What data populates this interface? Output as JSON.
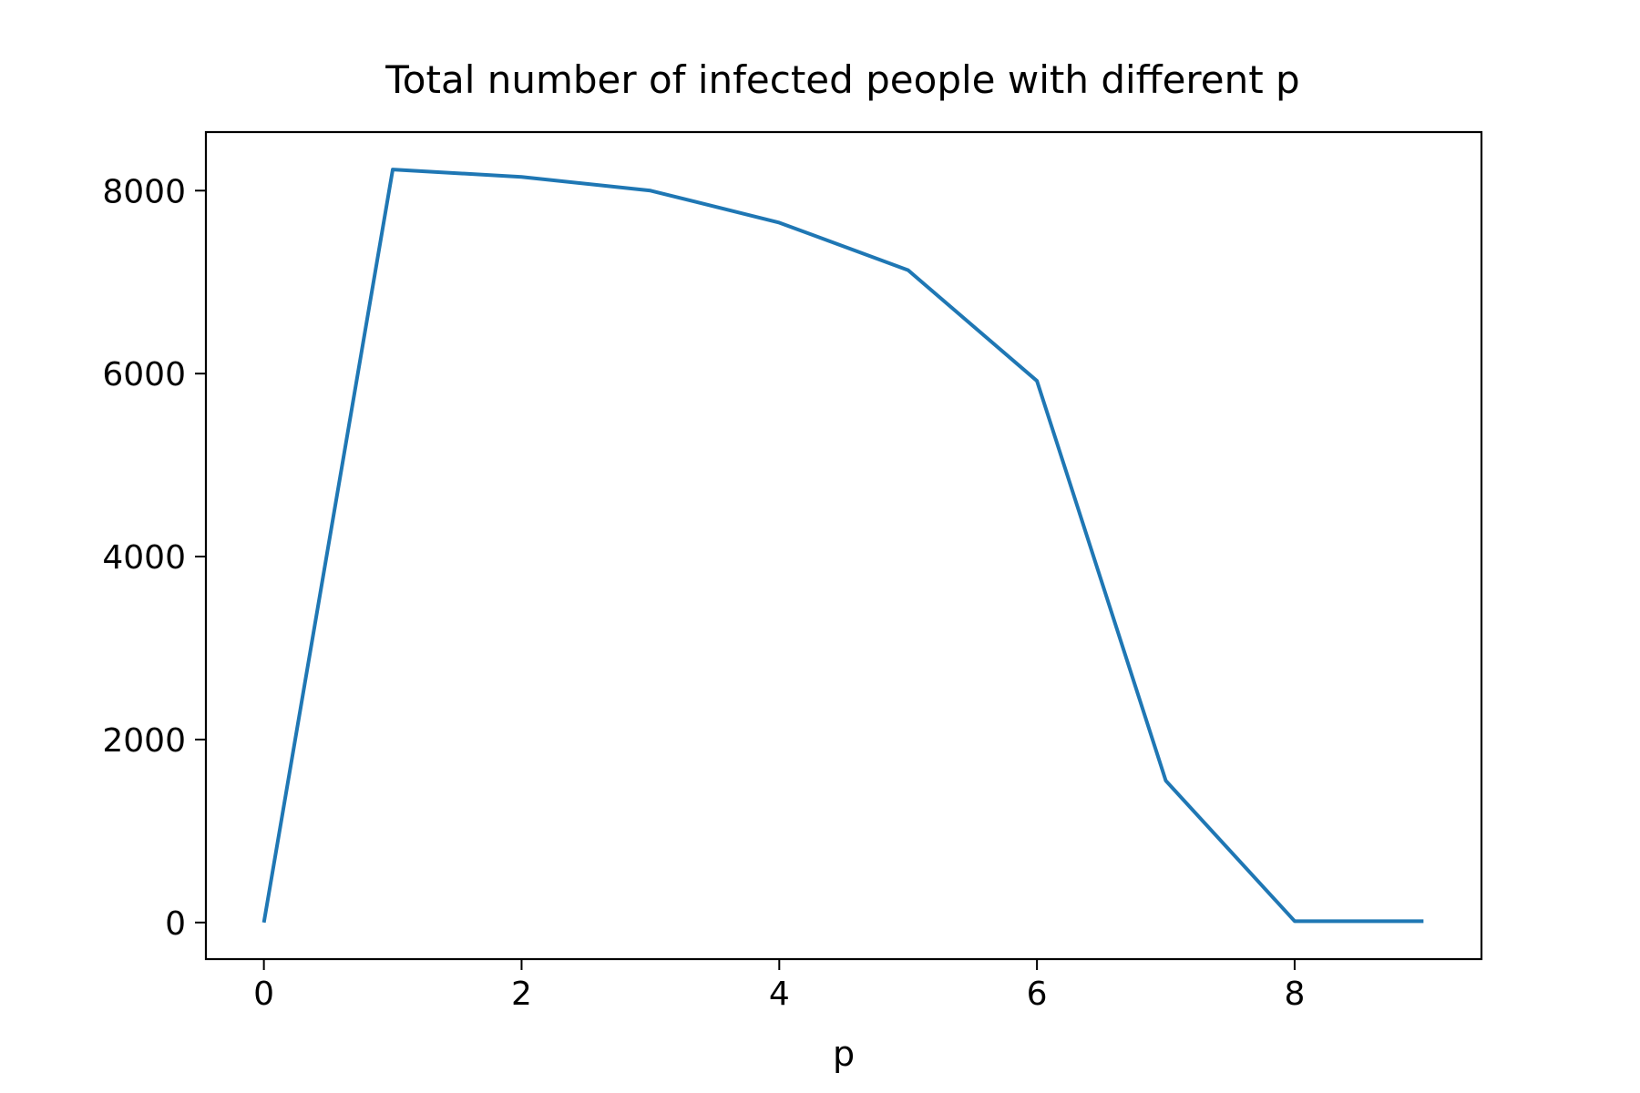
{
  "chart_data": {
    "type": "line",
    "title": "Total number of infected people with different p",
    "xlabel": "p",
    "ylabel": "",
    "x": [
      0,
      1,
      2,
      3,
      4,
      5,
      6,
      7,
      8,
      9
    ],
    "series": [
      {
        "values": [
          0,
          8230,
          8150,
          8000,
          7650,
          7130,
          5920,
          1550,
          15,
          15
        ],
        "color": "#1f77b4"
      }
    ],
    "xlim": [
      -0.45,
      9.45
    ],
    "ylim": [
      -400,
      8640
    ],
    "xticks": [
      0,
      2,
      4,
      6,
      8
    ],
    "xtick_labels": [
      "0",
      "2",
      "4",
      "6",
      "8"
    ],
    "yticks": [
      0,
      2000,
      4000,
      6000,
      8000
    ],
    "ytick_labels": [
      "0",
      "2000",
      "4000",
      "6000",
      "8000"
    ],
    "grid": false,
    "legend": "none"
  }
}
